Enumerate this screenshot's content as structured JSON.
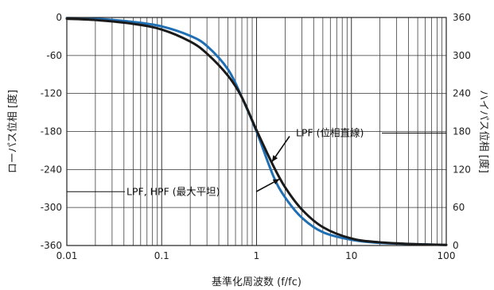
{
  "chart_data": {
    "type": "line",
    "x_scale": "log",
    "xlim": [
      0.01,
      100
    ],
    "xlabel": "基準化周波数 (f/fc)",
    "x_ticks": [
      {
        "value": 0.01,
        "label": "0.01"
      },
      {
        "value": 0.1,
        "label": "0.1"
      },
      {
        "value": 1,
        "label": "1"
      },
      {
        "value": 10,
        "label": "10"
      },
      {
        "value": 100,
        "label": "100"
      }
    ],
    "y_left": {
      "label": "ローパス位相 [度]",
      "lim": [
        -360,
        0
      ],
      "ticks": [
        {
          "value": 0,
          "label": "0"
        },
        {
          "value": -60,
          "label": "-60"
        },
        {
          "value": -120,
          "label": "-120"
        },
        {
          "value": -180,
          "label": "-180"
        },
        {
          "value": -240,
          "label": "-240"
        },
        {
          "value": -300,
          "label": "-300"
        },
        {
          "value": -360,
          "label": "-360"
        }
      ]
    },
    "y_right": {
      "label": "ハイパス位相 [度]",
      "lim": [
        0,
        360
      ],
      "ticks": [
        {
          "value": 360,
          "label": "360"
        },
        {
          "value": 300,
          "label": "300"
        },
        {
          "value": 240,
          "label": "240"
        },
        {
          "value": 180,
          "label": "180"
        },
        {
          "value": 120,
          "label": "120"
        },
        {
          "value": 60,
          "label": "60"
        },
        {
          "value": 0,
          "label": "0"
        }
      ]
    },
    "grid": true,
    "series": [
      {
        "name": "LPF (位相直線)",
        "color": "#1a1a1a",
        "x": [
          0.01,
          0.02,
          0.05,
          0.1,
          0.2,
          0.3,
          0.5,
          0.7,
          1,
          1.5,
          2,
          3,
          5,
          10,
          20,
          50,
          100
        ],
        "y": [
          -2,
          -4,
          -10,
          -19,
          -38,
          -57,
          -92,
          -126,
          -178,
          -234,
          -268,
          -303,
          -331,
          -349,
          -355,
          -358,
          -359
        ]
      },
      {
        "name": "LPF, HPF (最大平坦)",
        "color": "#1f6fb2",
        "x": [
          0.01,
          0.02,
          0.05,
          0.1,
          0.2,
          0.3,
          0.5,
          0.7,
          1,
          1.5,
          2,
          3,
          5,
          10,
          20,
          50,
          100
        ],
        "y": [
          -1,
          -2,
          -7,
          -14,
          -29,
          -45,
          -82,
          -126,
          -180,
          -250,
          -284,
          -316,
          -339,
          -351,
          -356,
          -358,
          -359
        ]
      }
    ],
    "annotations": [
      {
        "text": "LPF (位相直線)",
        "target_series": 0
      },
      {
        "text": "LPF, HPF (最大平坦)",
        "target_series": 1
      }
    ]
  }
}
